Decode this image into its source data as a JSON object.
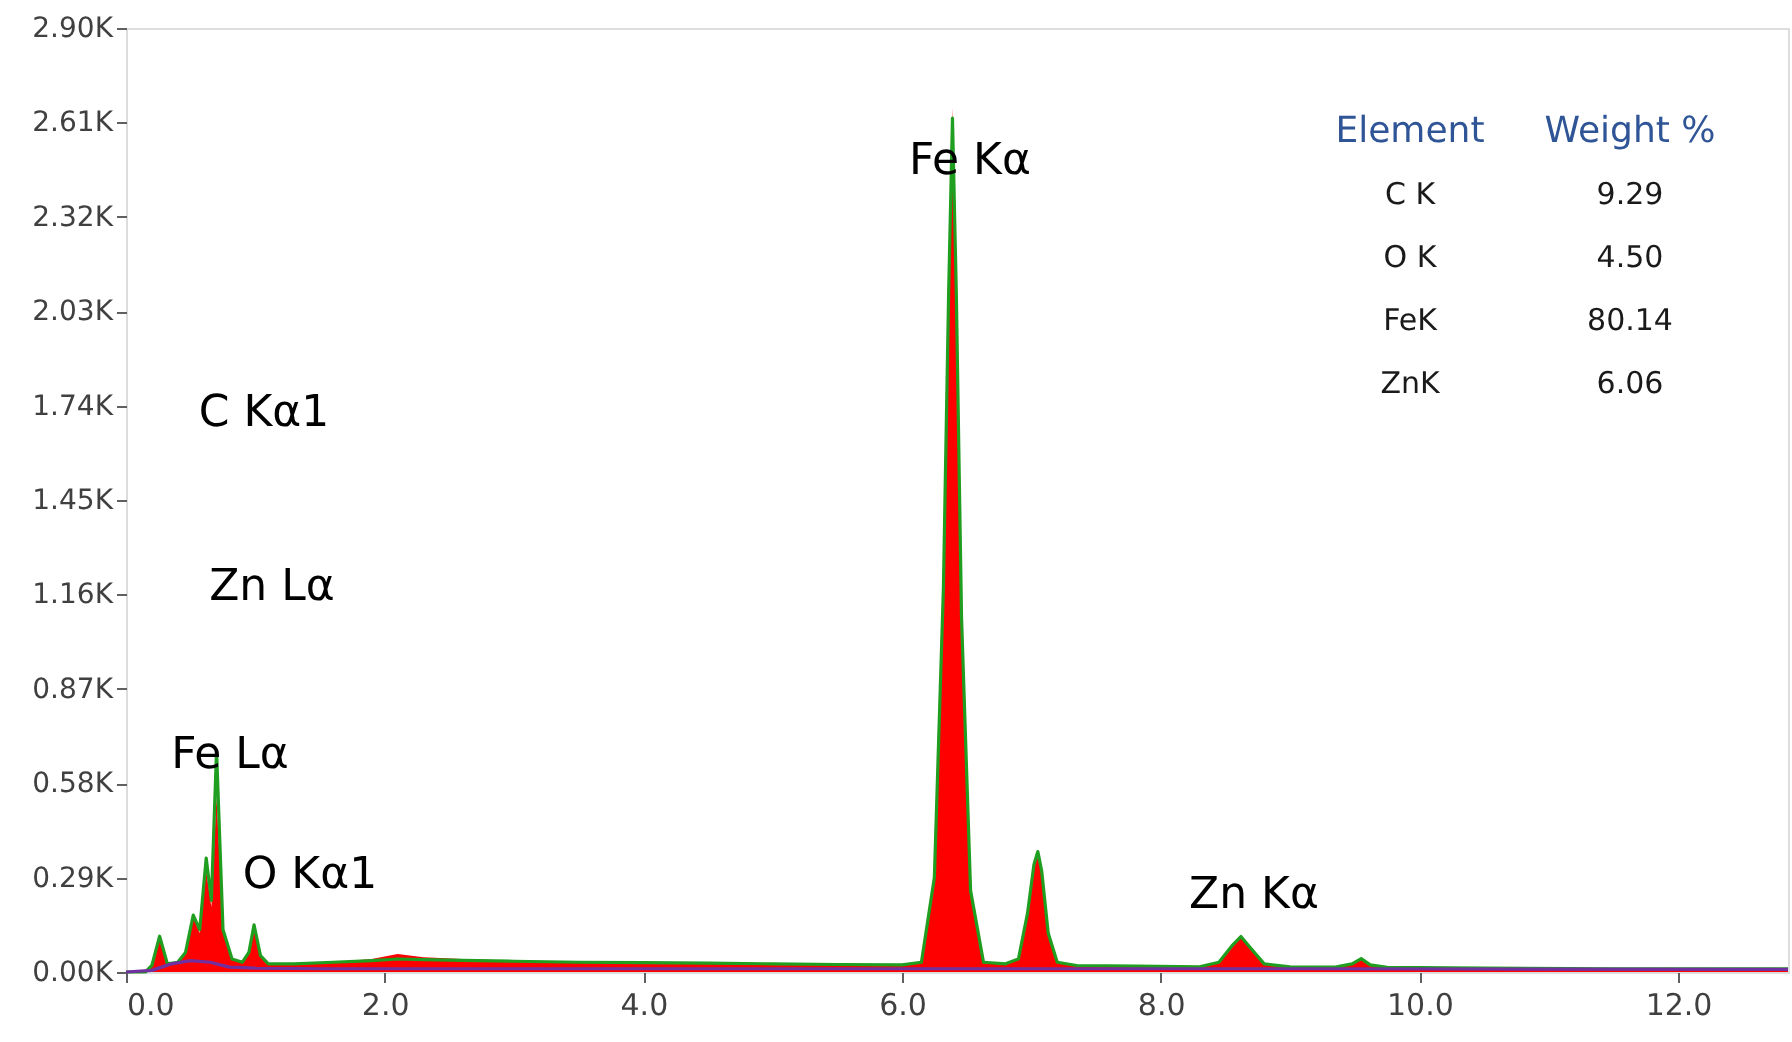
{
  "chart_data": {
    "type": "area",
    "x": [
      0,
      0.15,
      0.2,
      0.26,
      0.32,
      0.4,
      0.46,
      0.52,
      0.57,
      0.62,
      0.66,
      0.7,
      0.75,
      0.82,
      0.9,
      0.95,
      0.99,
      1.04,
      1.1,
      1.3,
      1.6,
      1.9,
      2.1,
      2.3,
      2.6,
      3.0,
      3.5,
      4.0,
      4.5,
      5.0,
      5.5,
      6.0,
      6.15,
      6.25,
      6.32,
      6.36,
      6.39,
      6.42,
      6.46,
      6.53,
      6.63,
      6.8,
      6.9,
      6.97,
      7.02,
      7.05,
      7.08,
      7.13,
      7.2,
      7.35,
      7.8,
      8.3,
      8.45,
      8.55,
      8.62,
      8.69,
      8.8,
      9.0,
      9.35,
      9.48,
      9.55,
      9.62,
      9.75,
      10.5,
      11.5,
      12.85
    ],
    "series": [
      {
        "color": "#ff0000",
        "values": [
          0,
          0,
          20,
          110,
          25,
          30,
          60,
          170,
          120,
          310,
          200,
          540,
          120,
          40,
          30,
          60,
          140,
          50,
          25,
          25,
          30,
          40,
          55,
          45,
          40,
          35,
          30,
          30,
          28,
          26,
          24,
          22,
          30,
          300,
          1200,
          2100,
          2654,
          2100,
          1100,
          250,
          30,
          25,
          40,
          180,
          330,
          350,
          300,
          120,
          30,
          20,
          18,
          16,
          30,
          80,
          107,
          75,
          25,
          16,
          15,
          25,
          38,
          22,
          14,
          12,
          10,
          10
        ]
      },
      {
        "type": "line",
        "color": "#1f9e1f",
        "values": [
          0,
          0,
          20,
          110,
          25,
          30,
          60,
          175,
          130,
          350,
          220,
          680,
          130,
          40,
          30,
          60,
          145,
          50,
          25,
          25,
          30,
          35,
          40,
          38,
          36,
          33,
          30,
          29,
          27,
          25,
          23,
          22,
          30,
          290,
          1180,
          2080,
          2623,
          2080,
          1090,
          250,
          30,
          25,
          40,
          180,
          330,
          370,
          310,
          120,
          30,
          20,
          18,
          16,
          30,
          80,
          109,
          76,
          25,
          16,
          15,
          25,
          41,
          22,
          14,
          12,
          10,
          10
        ]
      },
      {
        "type": "line",
        "color": "#7030a0",
        "x": [
          0,
          0.2,
          0.35,
          0.5,
          0.65,
          0.8,
          1.0,
          1.5,
          3,
          6,
          9,
          12.85
        ],
        "values": [
          0,
          5,
          25,
          35,
          30,
          15,
          12,
          10,
          10,
          10,
          10,
          8
        ]
      }
    ],
    "xlim": [
      0,
      12.85
    ],
    "xticks": [
      {
        "value": 0,
        "label": "0.0"
      },
      {
        "value": 2,
        "label": "2.0"
      },
      {
        "value": 4,
        "label": "4.0"
      },
      {
        "value": 6,
        "label": "6.0"
      },
      {
        "value": 8,
        "label": "8.0"
      },
      {
        "value": 10,
        "label": "10.0"
      },
      {
        "value": 12,
        "label": "12.0"
      }
    ],
    "ylim": [
      0,
      2900
    ],
    "yticks": [
      {
        "value": 0,
        "label": "0.00K"
      },
      {
        "value": 290,
        "label": "0.29K"
      },
      {
        "value": 580,
        "label": "0.58K"
      },
      {
        "value": 870,
        "label": "0.87K"
      },
      {
        "value": 1160,
        "label": "1.16K"
      },
      {
        "value": 1450,
        "label": "1.45K"
      },
      {
        "value": 1740,
        "label": "1.74K"
      },
      {
        "value": 2030,
        "label": "2.03K"
      },
      {
        "value": 2320,
        "label": "2.32K"
      },
      {
        "value": 2610,
        "label": "2.61K"
      },
      {
        "value": 2900,
        "label": "2.90K"
      }
    ],
    "grid": false,
    "annotations": [
      "Fe Kα",
      "C  Kα1",
      "Zn Lα",
      "Fe Lα",
      "O  Kα1",
      "Zn Kα",
      "Element",
      "Weight %",
      "C K",
      "9.29",
      "O K",
      "4.50",
      "FeK",
      "80.14",
      "ZnK",
      "6.06"
    ]
  }
}
